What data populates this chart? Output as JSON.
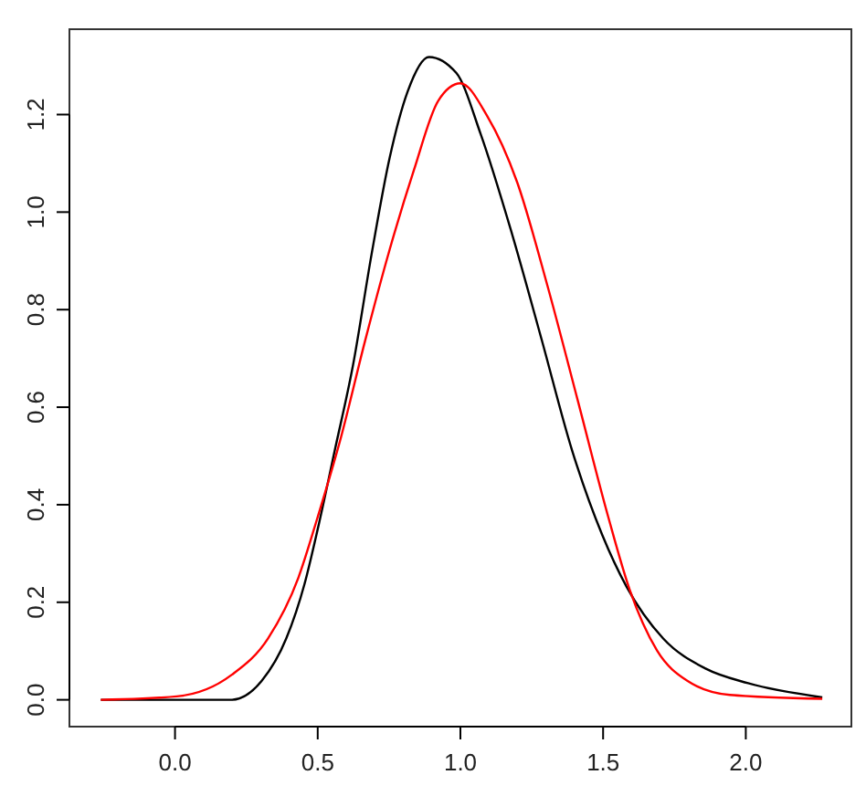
{
  "chart_data": {
    "type": "line",
    "xlim": [
      -0.37,
      2.37
    ],
    "ylim": [
      -0.055,
      1.375
    ],
    "xticks": [
      {
        "value": 0,
        "label": "0.0"
      },
      0.5,
      {
        "value": 1,
        "label": "1.0"
      },
      1.5,
      {
        "value": 2,
        "label": "2.0"
      }
    ],
    "yticks": [
      {
        "value": 0,
        "label": "0.0"
      },
      0.2,
      0.4,
      0.6,
      0.8,
      {
        "value": 1,
        "label": "1.0"
      },
      1.2
    ],
    "grid": false,
    "legend": false,
    "marker": "none",
    "line_style": "solid",
    "series": [
      {
        "color": "#000000",
        "x": [
          -0.26,
          0.0,
          0.198,
          0.304,
          0.39,
          0.454,
          0.5,
          0.56,
          0.624,
          0.688,
          0.752,
          0.815,
          0.89,
          0.986,
          1.071,
          1.178,
          1.284,
          1.391,
          1.497,
          1.582,
          1.71,
          1.859,
          2.008,
          2.268
        ],
        "values": [
          0,
          0,
          0,
          0.039,
          0.126,
          0.238,
          0.35,
          0.512,
          0.687,
          0.911,
          1.111,
          1.247,
          1.318,
          1.285,
          1.16,
          0.961,
          0.74,
          0.512,
          0.338,
          0.232,
          0.126,
          0.064,
          0.034,
          0.005
        ]
      },
      {
        "color": "#ff0000",
        "x": [
          -0.26,
          0.006,
          0.198,
          0.326,
          0.432,
          0.5,
          0.581,
          0.666,
          0.752,
          0.837,
          0.922,
          1.0,
          1.093,
          1.199,
          1.305,
          1.412,
          1.518,
          1.593,
          1.689,
          1.795,
          1.944,
          2.268
        ],
        "values": [
          0,
          0.007,
          0.051,
          0.126,
          0.25,
          0.375,
          0.537,
          0.736,
          0.923,
          1.086,
          1.228,
          1.264,
          1.198,
          1.061,
          0.849,
          0.612,
          0.375,
          0.226,
          0.101,
          0.039,
          0.01,
          0.002
        ]
      }
    ]
  }
}
